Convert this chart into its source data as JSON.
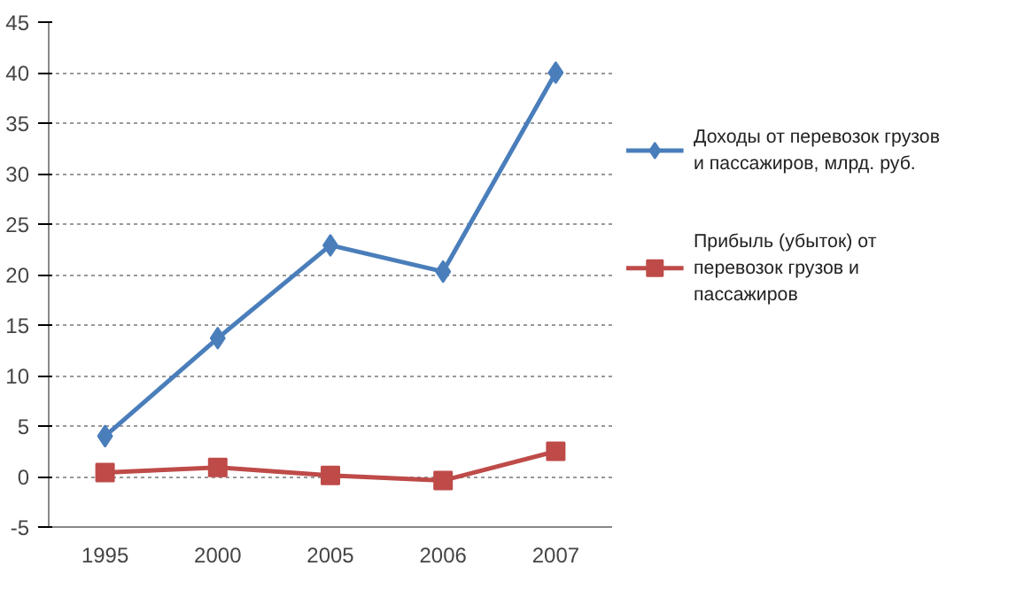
{
  "chart_data": {
    "type": "line",
    "categories": [
      "1995",
      "2000",
      "2005",
      "2006",
      "2007"
    ],
    "series": [
      {
        "name": "Доходы от перевозок грузов и пассажиров, млрд. руб.",
        "color": "#4a7ebb",
        "marker": "diamond",
        "values": [
          4,
          13.7,
          22.9,
          20.3,
          40
        ]
      },
      {
        "name": "Прибыль (убыток) от перевозок грузов и пассажиров",
        "color": "#be4b48",
        "marker": "square",
        "values": [
          0.4,
          0.9,
          0.1,
          -0.4,
          2.5
        ]
      }
    ],
    "ylim": [
      -5,
      45
    ],
    "yticks": [
      -5,
      0,
      5,
      10,
      15,
      20,
      25,
      30,
      35,
      40,
      45
    ],
    "grid": "y",
    "legend": "right",
    "line_style": "solid"
  }
}
